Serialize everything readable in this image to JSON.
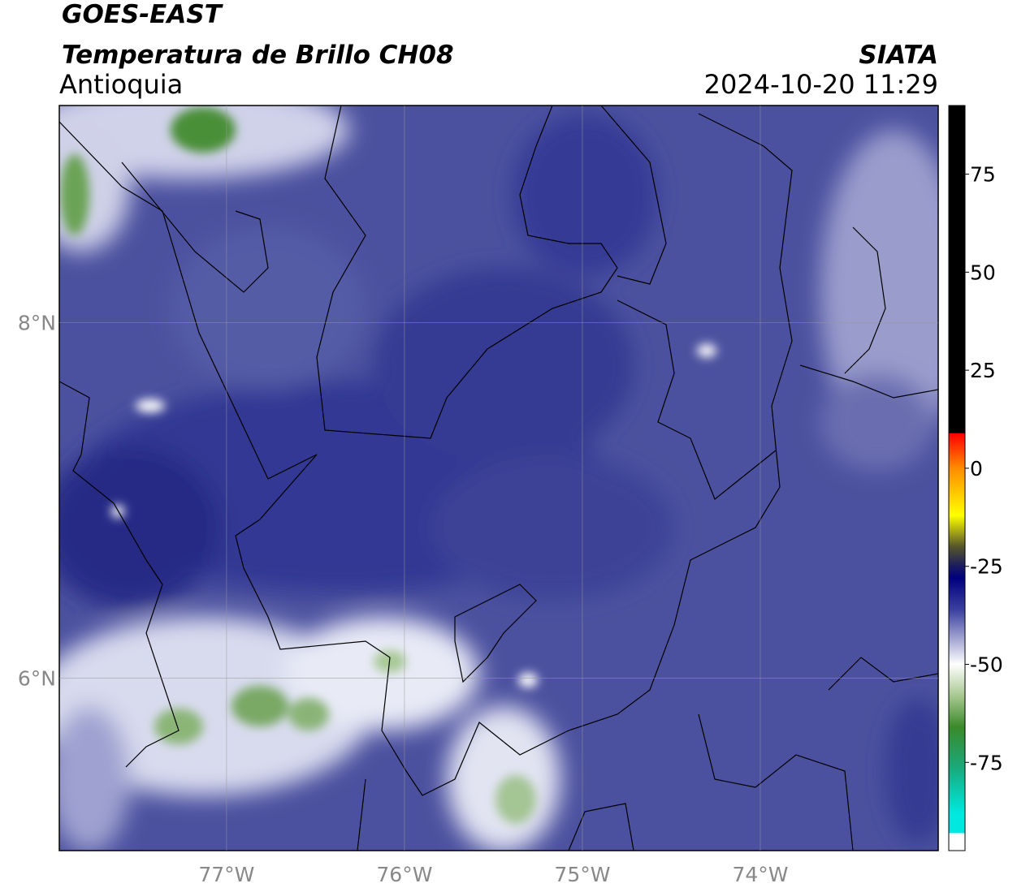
{
  "header": {
    "satellite": "GOES-EAST",
    "product": "Temperatura de Brillo CH08",
    "source": "SIATA",
    "region": "Antioquia",
    "datetime": "2024-10-20 11:29"
  },
  "map": {
    "xlim": [
      -77.94,
      -73.0
    ],
    "ylim": [
      5.03,
      9.22
    ],
    "xticks": [
      {
        "value": -77,
        "label": "77°W"
      },
      {
        "value": -76,
        "label": "76°W"
      },
      {
        "value": -75,
        "label": "75°W"
      },
      {
        "value": -74,
        "label": "74°W"
      }
    ],
    "yticks": [
      {
        "value": 8,
        "label": "8°N"
      },
      {
        "value": 6,
        "label": "6°N"
      }
    ],
    "grid": true
  },
  "colorbar": {
    "lim": [
      -97.5,
      92.5
    ],
    "ticks": [
      75,
      50,
      25,
      0,
      -25,
      -50,
      -75
    ],
    "colors": [
      {
        "value": 92.5,
        "color": "#000000"
      },
      {
        "value": 9,
        "color": "#000000"
      },
      {
        "value": 8.9,
        "color": "#ff0000"
      },
      {
        "value": 0,
        "color": "#ff8c00"
      },
      {
        "value": -12,
        "color": "#ffff00"
      },
      {
        "value": -20,
        "color": "#55552a"
      },
      {
        "value": -25,
        "color": "#1a1a60"
      },
      {
        "value": -28,
        "color": "#000080"
      },
      {
        "value": -36,
        "color": "#3a3f9e"
      },
      {
        "value": -45,
        "color": "#b8badc"
      },
      {
        "value": -50,
        "color": "#ffffff"
      },
      {
        "value": -58,
        "color": "#a8c890"
      },
      {
        "value": -66,
        "color": "#3a8a2a"
      },
      {
        "value": -76,
        "color": "#1aa878"
      },
      {
        "value": -88,
        "color": "#00e8e0"
      },
      {
        "value": -93,
        "color": "#00e8e0"
      },
      {
        "value": -93.1,
        "color": "#ffffff"
      },
      {
        "value": -97.5,
        "color": "#ffffff"
      }
    ]
  }
}
